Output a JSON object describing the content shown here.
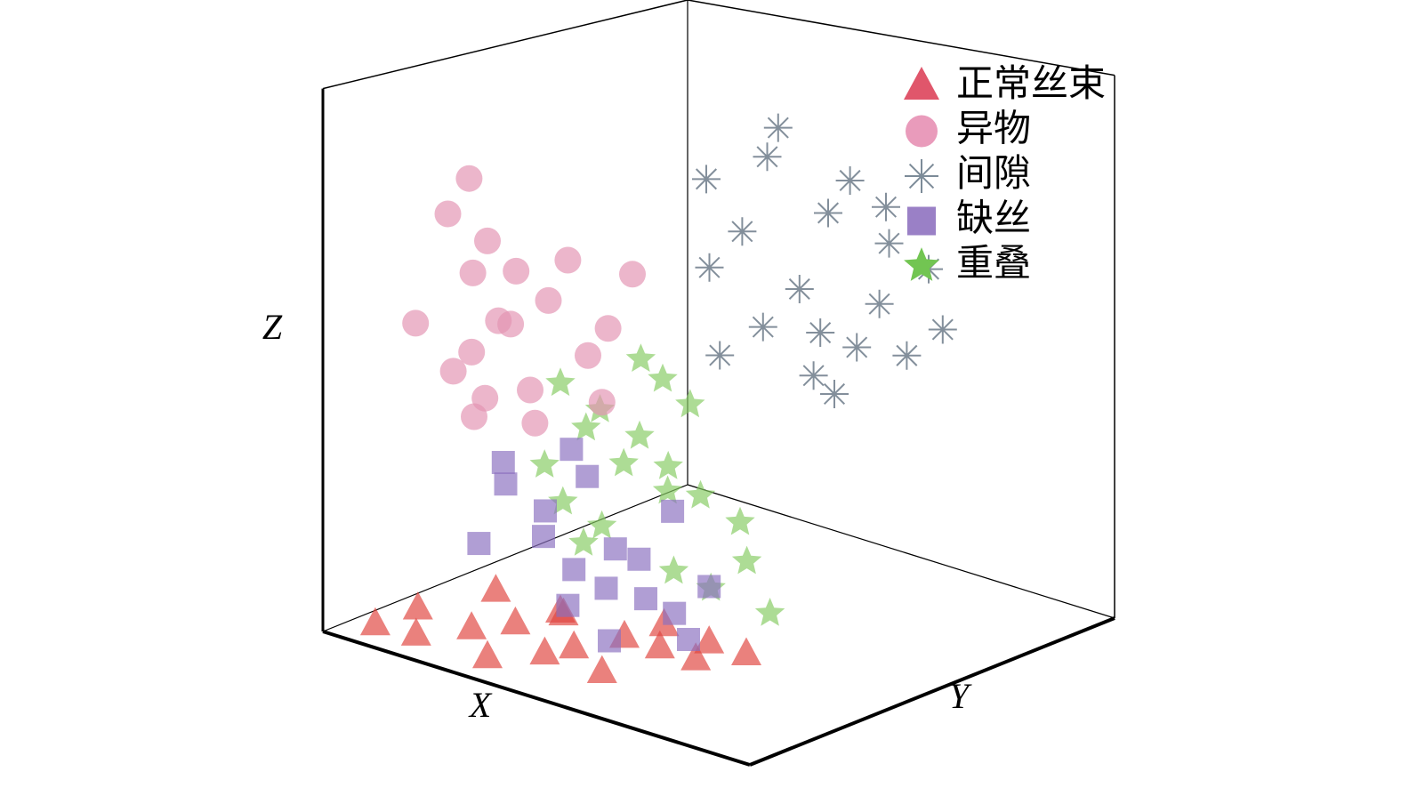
{
  "chart_data": {
    "type": "scatter",
    "xlabel": "X",
    "ylabel": "Y",
    "zlabel": "Z",
    "xlim": [
      0,
      1
    ],
    "ylim": [
      0,
      1
    ],
    "zlim": [
      0,
      1
    ],
    "series": [
      {
        "name": "正常丝束",
        "color": "#e0463f",
        "legend_color": "#e0566b",
        "marker": "triangle",
        "x": [
          0.95,
          0.92,
          0.88,
          0.85,
          0.9,
          0.8,
          0.78,
          0.75,
          0.7,
          0.82,
          0.72,
          0.68,
          0.65,
          0.62,
          0.6,
          0.76,
          0.86,
          0.7
        ],
        "y": [
          0.08,
          0.15,
          0.12,
          0.22,
          0.3,
          0.28,
          0.4,
          0.35,
          0.45,
          0.5,
          0.55,
          0.6,
          0.5,
          0.58,
          0.65,
          0.2,
          0.4,
          0.3
        ],
        "z": [
          0.02,
          0.01,
          0.04,
          0.02,
          0.0,
          0.03,
          0.01,
          0.05,
          0.02,
          0.0,
          0.03,
          0.01,
          0.04,
          0.02,
          0.01,
          0.06,
          0.02,
          0.03
        ]
      },
      {
        "name": "异物",
        "color": "#e394b2",
        "legend_color": "#e99bbb",
        "marker": "circle",
        "x": [
          0.95,
          0.9,
          0.98,
          0.88,
          0.92,
          0.85,
          0.96,
          0.9,
          0.82,
          0.87,
          0.93,
          0.8,
          0.86,
          0.94,
          0.84,
          0.78,
          0.9,
          0.88,
          0.82,
          0.76
        ],
        "y": [
          0.25,
          0.3,
          0.2,
          0.35,
          0.28,
          0.4,
          0.32,
          0.22,
          0.42,
          0.3,
          0.38,
          0.45,
          0.26,
          0.3,
          0.36,
          0.48,
          0.4,
          0.24,
          0.5,
          0.52
        ],
        "z": [
          0.8,
          0.75,
          0.6,
          0.7,
          0.55,
          0.65,
          0.45,
          0.5,
          0.72,
          0.6,
          0.62,
          0.55,
          0.45,
          0.7,
          0.42,
          0.6,
          0.5,
          0.85,
          0.48,
          0.7
        ]
      },
      {
        "name": "间隙",
        "color": "#6d7b8a",
        "legend_color": "#7c8b98",
        "marker": "asterisk",
        "x": [
          0.3,
          0.25,
          0.2,
          0.15,
          0.35,
          0.1,
          0.22,
          0.28,
          0.18,
          0.12,
          0.32,
          0.26,
          0.14,
          0.2,
          0.38,
          0.24,
          0.16,
          0.3,
          0.1,
          0.22
        ],
        "y": [
          0.3,
          0.4,
          0.5,
          0.6,
          0.35,
          0.65,
          0.45,
          0.55,
          0.55,
          0.7,
          0.45,
          0.35,
          0.5,
          0.62,
          0.4,
          0.5,
          0.65,
          0.6,
          0.55,
          0.4
        ],
        "z": [
          0.75,
          0.8,
          0.7,
          0.65,
          0.6,
          0.6,
          0.55,
          0.5,
          0.45,
          0.5,
          0.5,
          0.65,
          0.75,
          0.55,
          0.45,
          0.4,
          0.45,
          0.4,
          0.7,
          0.85
        ]
      },
      {
        "name": "缺丝",
        "color": "#8a70c0",
        "legend_color": "#9a80c6",
        "marker": "square",
        "x": [
          0.85,
          0.8,
          0.78,
          0.9,
          0.75,
          0.7,
          0.72,
          0.68,
          0.82,
          0.88,
          0.76,
          0.65,
          0.7,
          0.8,
          0.74,
          0.66,
          0.84,
          0.62
        ],
        "y": [
          0.3,
          0.35,
          0.4,
          0.28,
          0.45,
          0.5,
          0.38,
          0.55,
          0.42,
          0.32,
          0.48,
          0.52,
          0.6,
          0.5,
          0.36,
          0.45,
          0.38,
          0.58
        ],
        "z": [
          0.3,
          0.25,
          0.15,
          0.2,
          0.12,
          0.1,
          0.3,
          0.08,
          0.1,
          0.35,
          0.2,
          0.25,
          0.05,
          0.05,
          0.35,
          0.15,
          0.22,
          0.12
        ]
      },
      {
        "name": "重叠",
        "color": "#86cc63",
        "legend_color": "#72c552",
        "marker": "star",
        "x": [
          0.7,
          0.65,
          0.6,
          0.72,
          0.58,
          0.55,
          0.68,
          0.62,
          0.5,
          0.66,
          0.6,
          0.54,
          0.7,
          0.52,
          0.64,
          0.58,
          0.74,
          0.56,
          0.62,
          0.5
        ],
        "y": [
          0.3,
          0.35,
          0.4,
          0.28,
          0.45,
          0.5,
          0.38,
          0.42,
          0.55,
          0.32,
          0.48,
          0.6,
          0.36,
          0.45,
          0.5,
          0.55,
          0.34,
          0.42,
          0.38,
          0.62
        ],
        "z": [
          0.45,
          0.4,
          0.35,
          0.3,
          0.3,
          0.25,
          0.2,
          0.5,
          0.2,
          0.15,
          0.12,
          0.15,
          0.38,
          0.4,
          0.28,
          0.1,
          0.25,
          0.45,
          0.3,
          0.05
        ]
      }
    ]
  }
}
